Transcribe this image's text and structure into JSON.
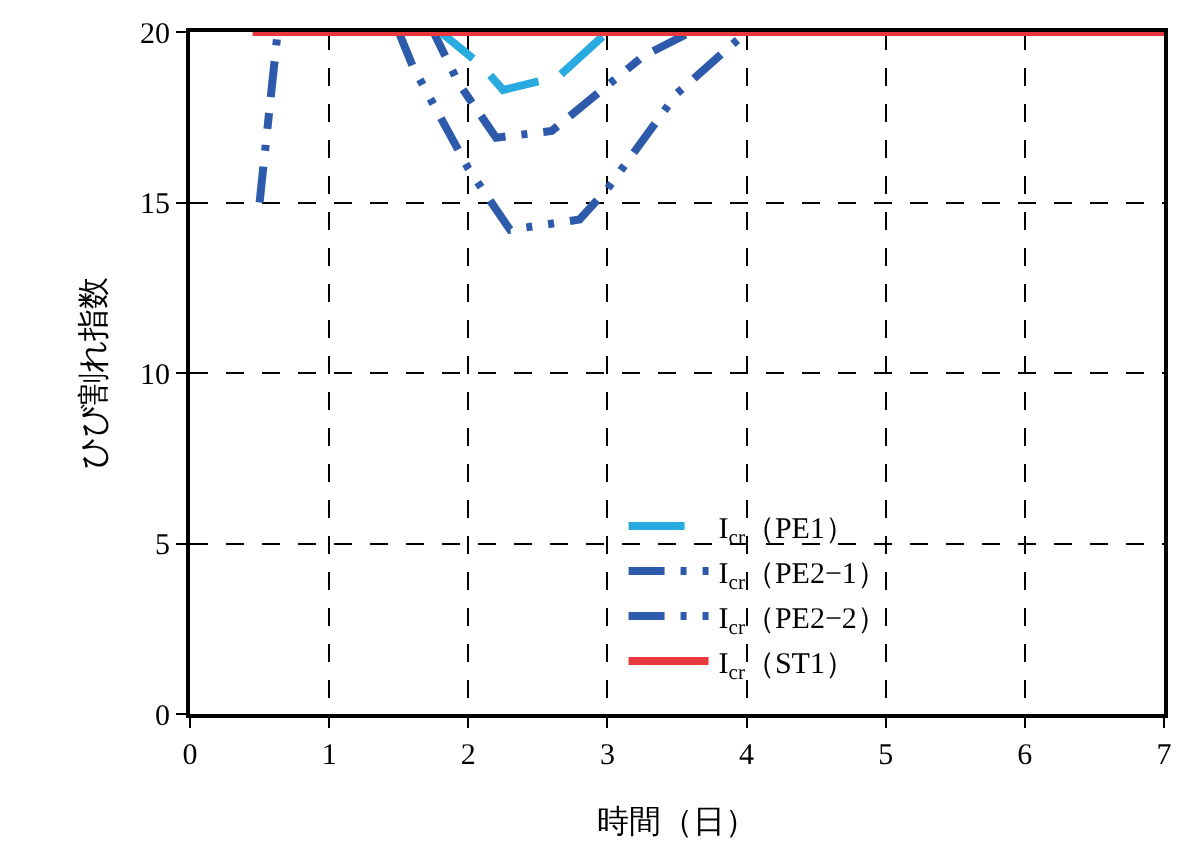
{
  "chart_data": {
    "type": "line",
    "xlabel": "時間（日）",
    "ylabel": "ひび割れ指数",
    "xlim": [
      0,
      7
    ],
    "xticks": [
      0,
      1,
      2,
      3,
      4,
      5,
      6,
      7
    ],
    "ylim": [
      0,
      20
    ],
    "yticks": [
      0,
      5,
      10,
      15,
      20
    ],
    "grid": true,
    "legend": "bottom right",
    "marker": "none",
    "series": [
      {
        "name": "I$_{cr}$（PE1）",
        "color": "#29abe2",
        "line_style": "dashed",
        "x": [
          1.7,
          1.8,
          2.1,
          2.25,
          2.65,
          3.0
        ],
        "values": [
          20,
          20,
          19,
          18.3,
          18.7,
          20
        ]
      },
      {
        "name": "I$_{cr}$（PE2−1）",
        "color": "#2e5aac",
        "line_style": "dashdot",
        "x": [
          0.5,
          0.63,
          1.75,
          1.93,
          2.2,
          2.6,
          2.93,
          3.26,
          3.6
        ],
        "values": [
          15,
          20,
          20,
          18.5,
          16.9,
          17.1,
          18.2,
          19.3,
          20
        ]
      },
      {
        "name": "I$_{cr}$（PE2−2）",
        "color": "#2e5aac",
        "line_style": "dashdotdot",
        "x": [
          1.5,
          1.6,
          2.0,
          2.3,
          2.8,
          3.0,
          3.5,
          4.0
        ],
        "values": [
          20,
          19,
          16,
          14.2,
          14.5,
          15.4,
          18.2,
          20
        ]
      },
      {
        "name": "I$_{cr}$（ST1）",
        "color": "#e8383d",
        "line_style": "solid",
        "x": [
          0.45,
          7
        ],
        "values": [
          20,
          20
        ]
      }
    ]
  }
}
